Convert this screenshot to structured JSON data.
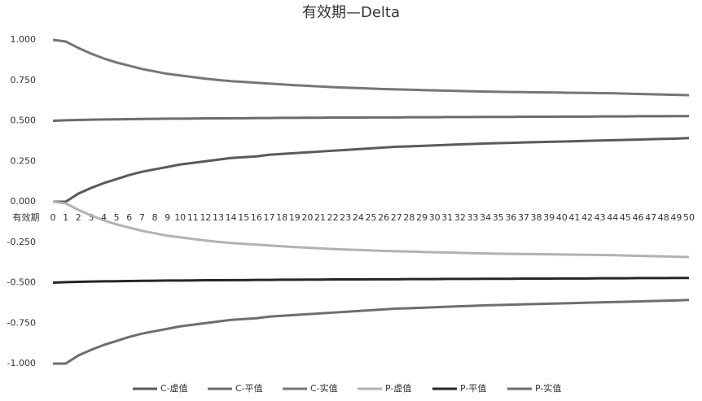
{
  "chart_data": {
    "type": "line",
    "title": "有效期—Delta",
    "x_label": "有效期",
    "categories": [
      "0",
      "1",
      "2",
      "3",
      "4",
      "5",
      "6",
      "7",
      "8",
      "9",
      "10",
      "11",
      "12",
      "13",
      "14",
      "15",
      "16",
      "17",
      "18",
      "19",
      "20",
      "21",
      "22",
      "23",
      "24",
      "25",
      "26",
      "27",
      "28",
      "29",
      "30",
      "31",
      "32",
      "33",
      "34",
      "35",
      "36",
      "37",
      "38",
      "39",
      "40",
      "41",
      "42",
      "43",
      "44",
      "45",
      "46",
      "47",
      "48",
      "49",
      "50"
    ],
    "ylim": [
      -1,
      1
    ],
    "yticks": [
      {
        "value": -1,
        "label": "-1.000"
      },
      {
        "value": -0.75,
        "label": "-0.750"
      },
      {
        "value": -0.5,
        "label": "-0.500"
      },
      {
        "value": -0.25,
        "label": "-0.250"
      },
      {
        "value": 0,
        "label": "0.000"
      },
      {
        "value": 0.25,
        "label": "0.250"
      },
      {
        "value": 0.5,
        "label": "0.500"
      },
      {
        "value": 0.75,
        "label": "0.750"
      },
      {
        "value": 1,
        "label": "1.000"
      }
    ],
    "grid": false,
    "legend": "bottom",
    "series": [
      {
        "name": "C-虚值",
        "color": "#5a5a5a",
        "values": [
          0,
          0,
          0.05,
          0.085,
          0.115,
          0.14,
          0.165,
          0.185,
          0.2,
          0.215,
          0.23,
          0.24,
          0.25,
          0.26,
          0.27,
          0.275,
          0.28,
          0.29,
          0.295,
          0.3,
          0.305,
          0.31,
          0.315,
          0.32,
          0.325,
          0.33,
          0.335,
          0.34,
          0.342,
          0.345,
          0.348,
          0.351,
          0.354,
          0.357,
          0.36,
          0.362,
          0.364,
          0.366,
          0.368,
          0.37,
          0.372,
          0.374,
          0.376,
          0.378,
          0.38,
          0.382,
          0.384,
          0.386,
          0.388,
          0.39,
          0.393
        ]
      },
      {
        "name": "C-平值",
        "color": "#6b6b6b",
        "values": [
          0.5,
          0.503,
          0.505,
          0.507,
          0.508,
          0.509,
          0.51,
          0.511,
          0.512,
          0.513,
          0.513,
          0.514,
          0.515,
          0.515,
          0.516,
          0.516,
          0.517,
          0.517,
          0.518,
          0.518,
          0.519,
          0.519,
          0.52,
          0.52,
          0.52,
          0.521,
          0.521,
          0.521,
          0.522,
          0.522,
          0.522,
          0.523,
          0.523,
          0.523,
          0.524,
          0.524,
          0.524,
          0.525,
          0.525,
          0.525,
          0.526,
          0.526,
          0.526,
          0.527,
          0.527,
          0.527,
          0.528,
          0.528,
          0.528,
          0.529,
          0.529
        ]
      },
      {
        "name": "C-实值",
        "color": "#767676",
        "values": [
          1,
          0.99,
          0.95,
          0.915,
          0.885,
          0.86,
          0.84,
          0.82,
          0.805,
          0.79,
          0.78,
          0.77,
          0.76,
          0.752,
          0.745,
          0.74,
          0.735,
          0.73,
          0.725,
          0.72,
          0.716,
          0.712,
          0.708,
          0.705,
          0.702,
          0.699,
          0.696,
          0.694,
          0.692,
          0.69,
          0.688,
          0.686,
          0.684,
          0.682,
          0.68,
          0.679,
          0.678,
          0.677,
          0.676,
          0.675,
          0.674,
          0.673,
          0.672,
          0.671,
          0.67,
          0.668,
          0.666,
          0.664,
          0.662,
          0.66,
          0.658
        ]
      },
      {
        "name": "P-虚值",
        "color": "#b2b2b2",
        "values": [
          0,
          -0.01,
          -0.05,
          -0.085,
          -0.115,
          -0.14,
          -0.16,
          -0.18,
          -0.195,
          -0.21,
          -0.22,
          -0.23,
          -0.24,
          -0.248,
          -0.255,
          -0.26,
          -0.265,
          -0.27,
          -0.275,
          -0.28,
          -0.284,
          -0.288,
          -0.292,
          -0.295,
          -0.298,
          -0.301,
          -0.304,
          -0.306,
          -0.308,
          -0.31,
          -0.312,
          -0.314,
          -0.316,
          -0.318,
          -0.32,
          -0.321,
          -0.322,
          -0.323,
          -0.324,
          -0.325,
          -0.326,
          -0.327,
          -0.328,
          -0.329,
          -0.33,
          -0.332,
          -0.334,
          -0.336,
          -0.338,
          -0.34,
          -0.342
        ]
      },
      {
        "name": "P-平值",
        "color": "#262626",
        "values": [
          -0.5,
          -0.497,
          -0.495,
          -0.493,
          -0.492,
          -0.491,
          -0.49,
          -0.489,
          -0.488,
          -0.487,
          -0.487,
          -0.486,
          -0.485,
          -0.485,
          -0.484,
          -0.484,
          -0.483,
          -0.483,
          -0.482,
          -0.482,
          -0.481,
          -0.481,
          -0.48,
          -0.48,
          -0.48,
          -0.479,
          -0.479,
          -0.479,
          -0.478,
          -0.478,
          -0.478,
          -0.477,
          -0.477,
          -0.477,
          -0.476,
          -0.476,
          -0.476,
          -0.475,
          -0.475,
          -0.475,
          -0.474,
          -0.474,
          -0.474,
          -0.473,
          -0.473,
          -0.473,
          -0.472,
          -0.472,
          -0.472,
          -0.471,
          -0.471
        ]
      },
      {
        "name": "P-实值",
        "color": "#6e6e6e",
        "values": [
          -1,
          -1,
          -0.95,
          -0.915,
          -0.885,
          -0.86,
          -0.835,
          -0.815,
          -0.8,
          -0.785,
          -0.77,
          -0.76,
          -0.75,
          -0.74,
          -0.73,
          -0.725,
          -0.72,
          -0.71,
          -0.705,
          -0.7,
          -0.695,
          -0.69,
          -0.685,
          -0.68,
          -0.675,
          -0.67,
          -0.665,
          -0.66,
          -0.658,
          -0.655,
          -0.652,
          -0.649,
          -0.646,
          -0.643,
          -0.64,
          -0.638,
          -0.636,
          -0.634,
          -0.632,
          -0.63,
          -0.628,
          -0.626,
          -0.624,
          -0.622,
          -0.62,
          -0.618,
          -0.616,
          -0.614,
          -0.612,
          -0.61,
          -0.607
        ]
      }
    ]
  }
}
